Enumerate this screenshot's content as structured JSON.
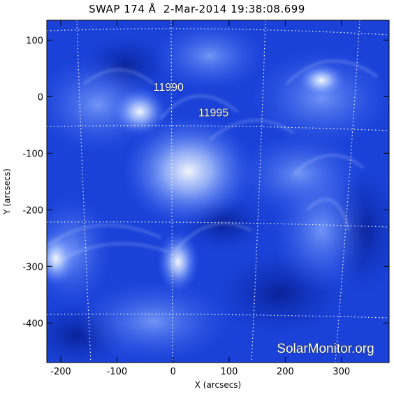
{
  "title": "SWAP 174 Å  2-Mar-2014 19:38:08.699",
  "x_axis": {
    "label": "X (arcsecs)",
    "ticks": [
      -200,
      -100,
      0,
      100,
      200,
      300
    ],
    "range": [
      -225,
      385
    ]
  },
  "y_axis": {
    "label": "Y (arcsecs)",
    "ticks": [
      100,
      0,
      -100,
      -200,
      -300,
      -400
    ],
    "range": [
      -470,
      135
    ]
  },
  "regions": [
    {
      "label": "11990",
      "x": -35,
      "y": 10
    },
    {
      "label": "11995",
      "x": 45,
      "y": -35
    }
  ],
  "watermark": "SolarMonitor.org",
  "colors": {
    "sun_base": "#1236c9",
    "sun_bright": "#e8f0ff",
    "grid": "#ffffff"
  }
}
